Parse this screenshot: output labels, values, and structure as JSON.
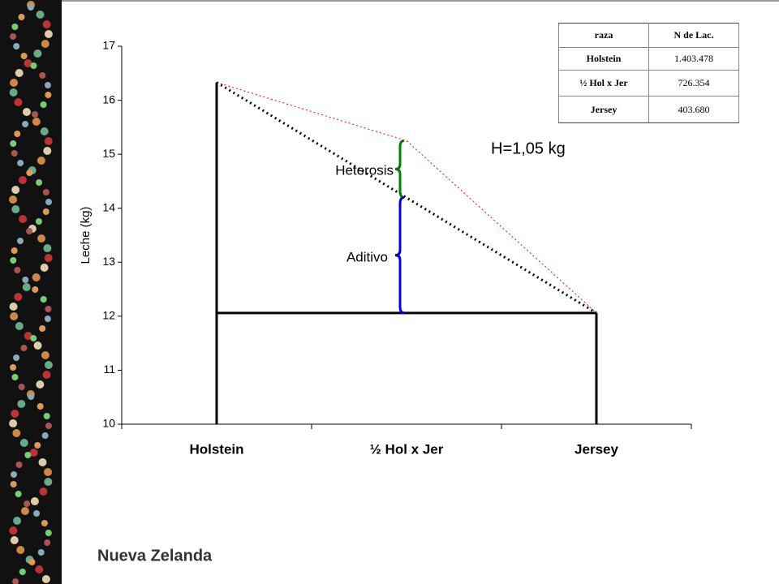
{
  "chart_data": {
    "type": "line",
    "y_label": "Leche (kg)",
    "categories": [
      "Holstein",
      "½ Hol x Jer",
      "Jersey"
    ],
    "series": [
      {
        "color": "#ff0000",
        "values": [
          16.33,
          15.25,
          12.06
        ]
      },
      {
        "color": "#000000",
        "values": [
          16.33,
          14.2,
          12.06
        ]
      }
    ],
    "ylim": [
      10,
      17
    ],
    "yticks": [
      10,
      11,
      12,
      13,
      14,
      15,
      16,
      17
    ],
    "annotations": [
      "H=1,05 kg",
      "Heterosis",
      "Aditivo"
    ]
  },
  "table": {
    "header": [
      "raza",
      "N de Lac."
    ],
    "rows": [
      [
        "Holstein",
        "1.403.478"
      ],
      [
        "½ Hol x Jer",
        "726.354"
      ],
      [
        "Jersey",
        "403.680"
      ]
    ]
  },
  "footer": "Nueva Zelanda"
}
